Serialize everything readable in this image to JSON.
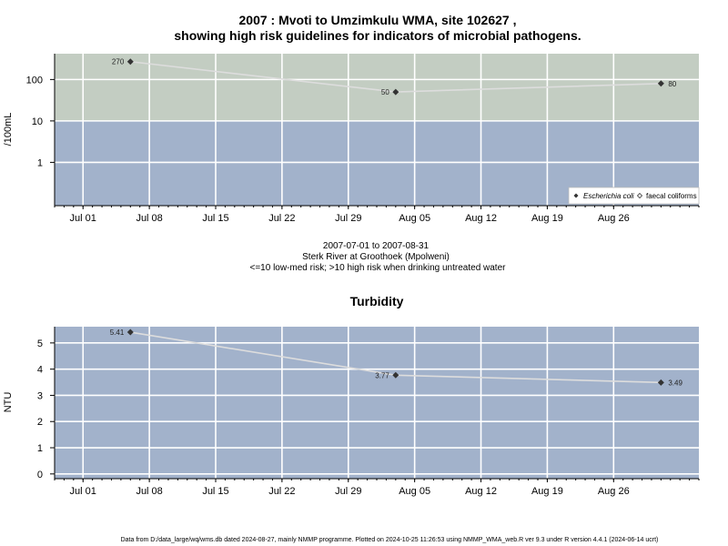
{
  "chart_data": [
    {
      "type": "line",
      "title_line1": "2007 : Mvoti to Umzimkulu WMA, site 102627 ,",
      "title_line2": "showing high risk guidelines for indicators of microbial pathogens.",
      "ylabel": "/100mL",
      "y_scale": "log",
      "y_ticks": [
        1,
        10,
        100
      ],
      "ylim": [
        0.09,
        420
      ],
      "x_ticks": [
        "Jul 01",
        "Jul 08",
        "Jul 15",
        "Jul 22",
        "Jul 29",
        "Aug 05",
        "Aug 12",
        "Aug 19",
        "Aug 26"
      ],
      "x_tick_dates": [
        "2007-07-01",
        "2007-07-08",
        "2007-07-15",
        "2007-07-22",
        "2007-07-29",
        "2007-08-05",
        "2007-08-12",
        "2007-08-19",
        "2007-08-26"
      ],
      "xlim": [
        "2007-06-28",
        "2007-09-04"
      ],
      "bands": [
        {
          "from": 0.09,
          "to": 10,
          "color": "#a2b2cb",
          "meaning": "low-med risk"
        },
        {
          "from": 10,
          "to": 420,
          "color": "#c3cdc2",
          "meaning": "high risk"
        }
      ],
      "series": [
        {
          "name": "Escherichia coli",
          "marker": "filled-diamond",
          "points": [
            {
              "date": "2007-07-06",
              "value": 270,
              "label": "270"
            },
            {
              "date": "2007-08-03",
              "value": 50,
              "label": "50"
            },
            {
              "date": "2007-08-31",
              "value": 80,
              "label": "80"
            }
          ]
        },
        {
          "name": "faecal coliforms",
          "marker": "open-diamond",
          "points": []
        }
      ],
      "legend_position": "bottom-right",
      "grid": true
    },
    {
      "type": "line",
      "title": "Turbidity",
      "ylabel": "NTU",
      "y_scale": "linear",
      "y_ticks": [
        0,
        1,
        2,
        3,
        4,
        5
      ],
      "ylim": [
        -0.18,
        5.62
      ],
      "x_ticks": [
        "Jul 01",
        "Jul 08",
        "Jul 15",
        "Jul 22",
        "Jul 29",
        "Aug 05",
        "Aug 12",
        "Aug 19",
        "Aug 26"
      ],
      "x_tick_dates": [
        "2007-07-01",
        "2007-07-08",
        "2007-07-15",
        "2007-07-22",
        "2007-07-29",
        "2007-08-05",
        "2007-08-12",
        "2007-08-19",
        "2007-08-26"
      ],
      "xlim": [
        "2007-06-28",
        "2007-09-04"
      ],
      "background": "#a2b2cb",
      "series": [
        {
          "name": "",
          "marker": "filled-diamond",
          "points": [
            {
              "date": "2007-07-06",
              "value": 5.41,
              "label": "5.41"
            },
            {
              "date": "2007-08-03",
              "value": 3.77,
              "label": "3.77"
            },
            {
              "date": "2007-08-31",
              "value": 3.49,
              "label": "3.49"
            }
          ]
        }
      ],
      "grid": true
    }
  ],
  "caption": {
    "line1": "2007-07-01 to 2007-08-31",
    "line2": "Sterk River at Groothoek (Mpolweni)",
    "line3": "<=10 low-med risk; >10 high risk when drinking untreated water"
  },
  "footer": "Data from D:/data_large/wq/wms.db dated 2024-08-27, mainly NMMP programme. Plotted on 2024-10-25 11:26:53 using NMMP_WMA_web.R ver 9.3 under R version 4.4.1 (2024-06-14 ucrt)",
  "colors": {
    "low_band": "#a2b2cb",
    "high_band": "#c3cdc2",
    "grid": "#ffffff",
    "series_line": "#dddddd",
    "marker": "#333333"
  }
}
